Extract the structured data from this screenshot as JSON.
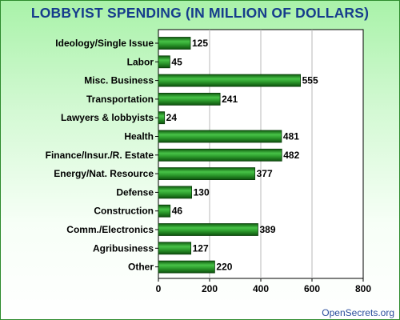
{
  "chart_data": {
    "type": "bar",
    "orientation": "horizontal",
    "title": "LOBBYIST SPENDING (IN MILLION OF DOLLARS)",
    "xlabel": "",
    "ylabel": "",
    "categories": [
      "Ideology/Single Issue",
      "Labor",
      "Misc. Business",
      "Transportation",
      "Lawyers & lobbyists",
      "Health",
      "Finance/Insur./R. Estate",
      "Energy/Nat. Resource",
      "Defense",
      "Construction",
      "Comm./Electronics",
      "Agribusiness",
      "Other"
    ],
    "values": [
      125,
      45,
      555,
      241,
      24,
      481,
      482,
      377,
      130,
      46,
      389,
      127,
      220
    ],
    "xlim": [
      0,
      800
    ],
    "xticks": [
      0,
      200,
      400,
      600,
      800
    ],
    "grid": true,
    "legend": "none",
    "bar_color": "#2e9e2e"
  },
  "source_credit": "OpenSecrets.org"
}
